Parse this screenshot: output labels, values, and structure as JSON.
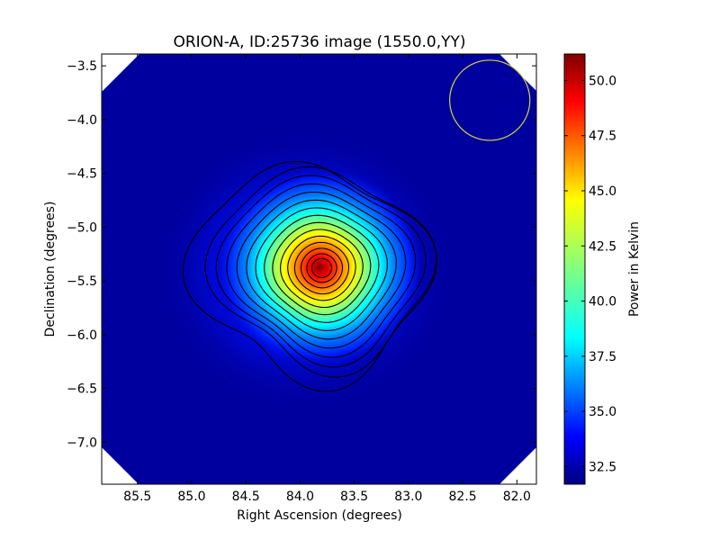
{
  "chart_data": {
    "type": "heatmap",
    "title": "ORION-A, ID:25736 image (1550.0,YY)",
    "xlabel": "Right Ascension (degrees)",
    "ylabel": "Declination (degrees)",
    "colorbar_label": "Power in Kelvin",
    "xlim": [
      85.83,
      81.82
    ],
    "ylim": [
      -7.39,
      -3.39
    ],
    "x_reversed": true,
    "colormap": "jet",
    "clim": [
      31.7,
      51.2
    ],
    "x_ticks": [
      85.5,
      85.0,
      84.5,
      84.0,
      83.5,
      83.0,
      82.5,
      82.0
    ],
    "x_tick_labels": [
      "85.5",
      "85.0",
      "84.5",
      "84.0",
      "83.5",
      "83.0",
      "82.5",
      "82.0"
    ],
    "y_ticks": [
      -3.5,
      -4.0,
      -4.5,
      -5.0,
      -5.5,
      -6.0,
      -6.5,
      -7.0
    ],
    "y_tick_labels": [
      "−3.5",
      "−4.0",
      "−4.5",
      "−5.0",
      "−5.5",
      "−6.0",
      "−6.5",
      "−7.0"
    ],
    "colorbar_ticks": [
      32.5,
      35.0,
      37.5,
      40.0,
      42.5,
      45.0,
      47.5,
      50.0
    ],
    "colorbar_tick_labels": [
      "32.5",
      "35.0",
      "37.5",
      "40.0",
      "42.5",
      "45.0",
      "47.5",
      "50.0"
    ],
    "source_peak": {
      "ra": 83.8,
      "dec": -5.38,
      "value": 51.0
    },
    "background_level": 32.5,
    "contour_count": 15,
    "beam": {
      "ra": 82.25,
      "dec": -3.82,
      "radius_deg": 0.37,
      "color": "#d4d43a"
    }
  }
}
